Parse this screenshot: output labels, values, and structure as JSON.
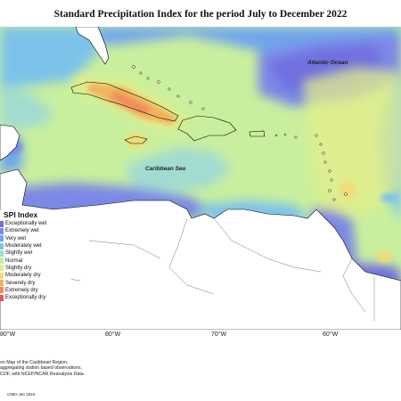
{
  "title": "Standard Precipitation Index for the period July to December 2022",
  "map_labels": {
    "atlantic": "Atlantic Ocean",
    "caribbean": "Caribbean Sea"
  },
  "longitude_ticks": [
    "80°W",
    "80°W",
    "70°W",
    "60°W"
  ],
  "legend": {
    "title": "SPI Index",
    "items": [
      {
        "label": "Exceptionally wet",
        "color": "#6f6fe0"
      },
      {
        "label": "Extremely wet",
        "color": "#7b88e6"
      },
      {
        "label": "Very wet",
        "color": "#6fa6ec"
      },
      {
        "label": "Moderately wet",
        "color": "#7cc3ea"
      },
      {
        "label": "Slightly wet",
        "color": "#a2dcd0"
      },
      {
        "label": "Normal",
        "color": "#c9ef9e"
      },
      {
        "label": "Slightly dry",
        "color": "#e3ee8a"
      },
      {
        "label": "Moderately dry",
        "color": "#f2dc74"
      },
      {
        "label": "Severely dry",
        "color": "#f2b25c"
      },
      {
        "label": "Extremely dry",
        "color": "#ee8a5a"
      },
      {
        "label": "Exceptionally dry",
        "color": "#e45a5a"
      }
    ]
  },
  "notes": [
    "on Map of the Caribbean Region.",
    "aggregating station based observations,",
    "COF, with NCEP/NCAR Reanalysis Data."
  ],
  "credit": "CIMH Jan 2023"
}
